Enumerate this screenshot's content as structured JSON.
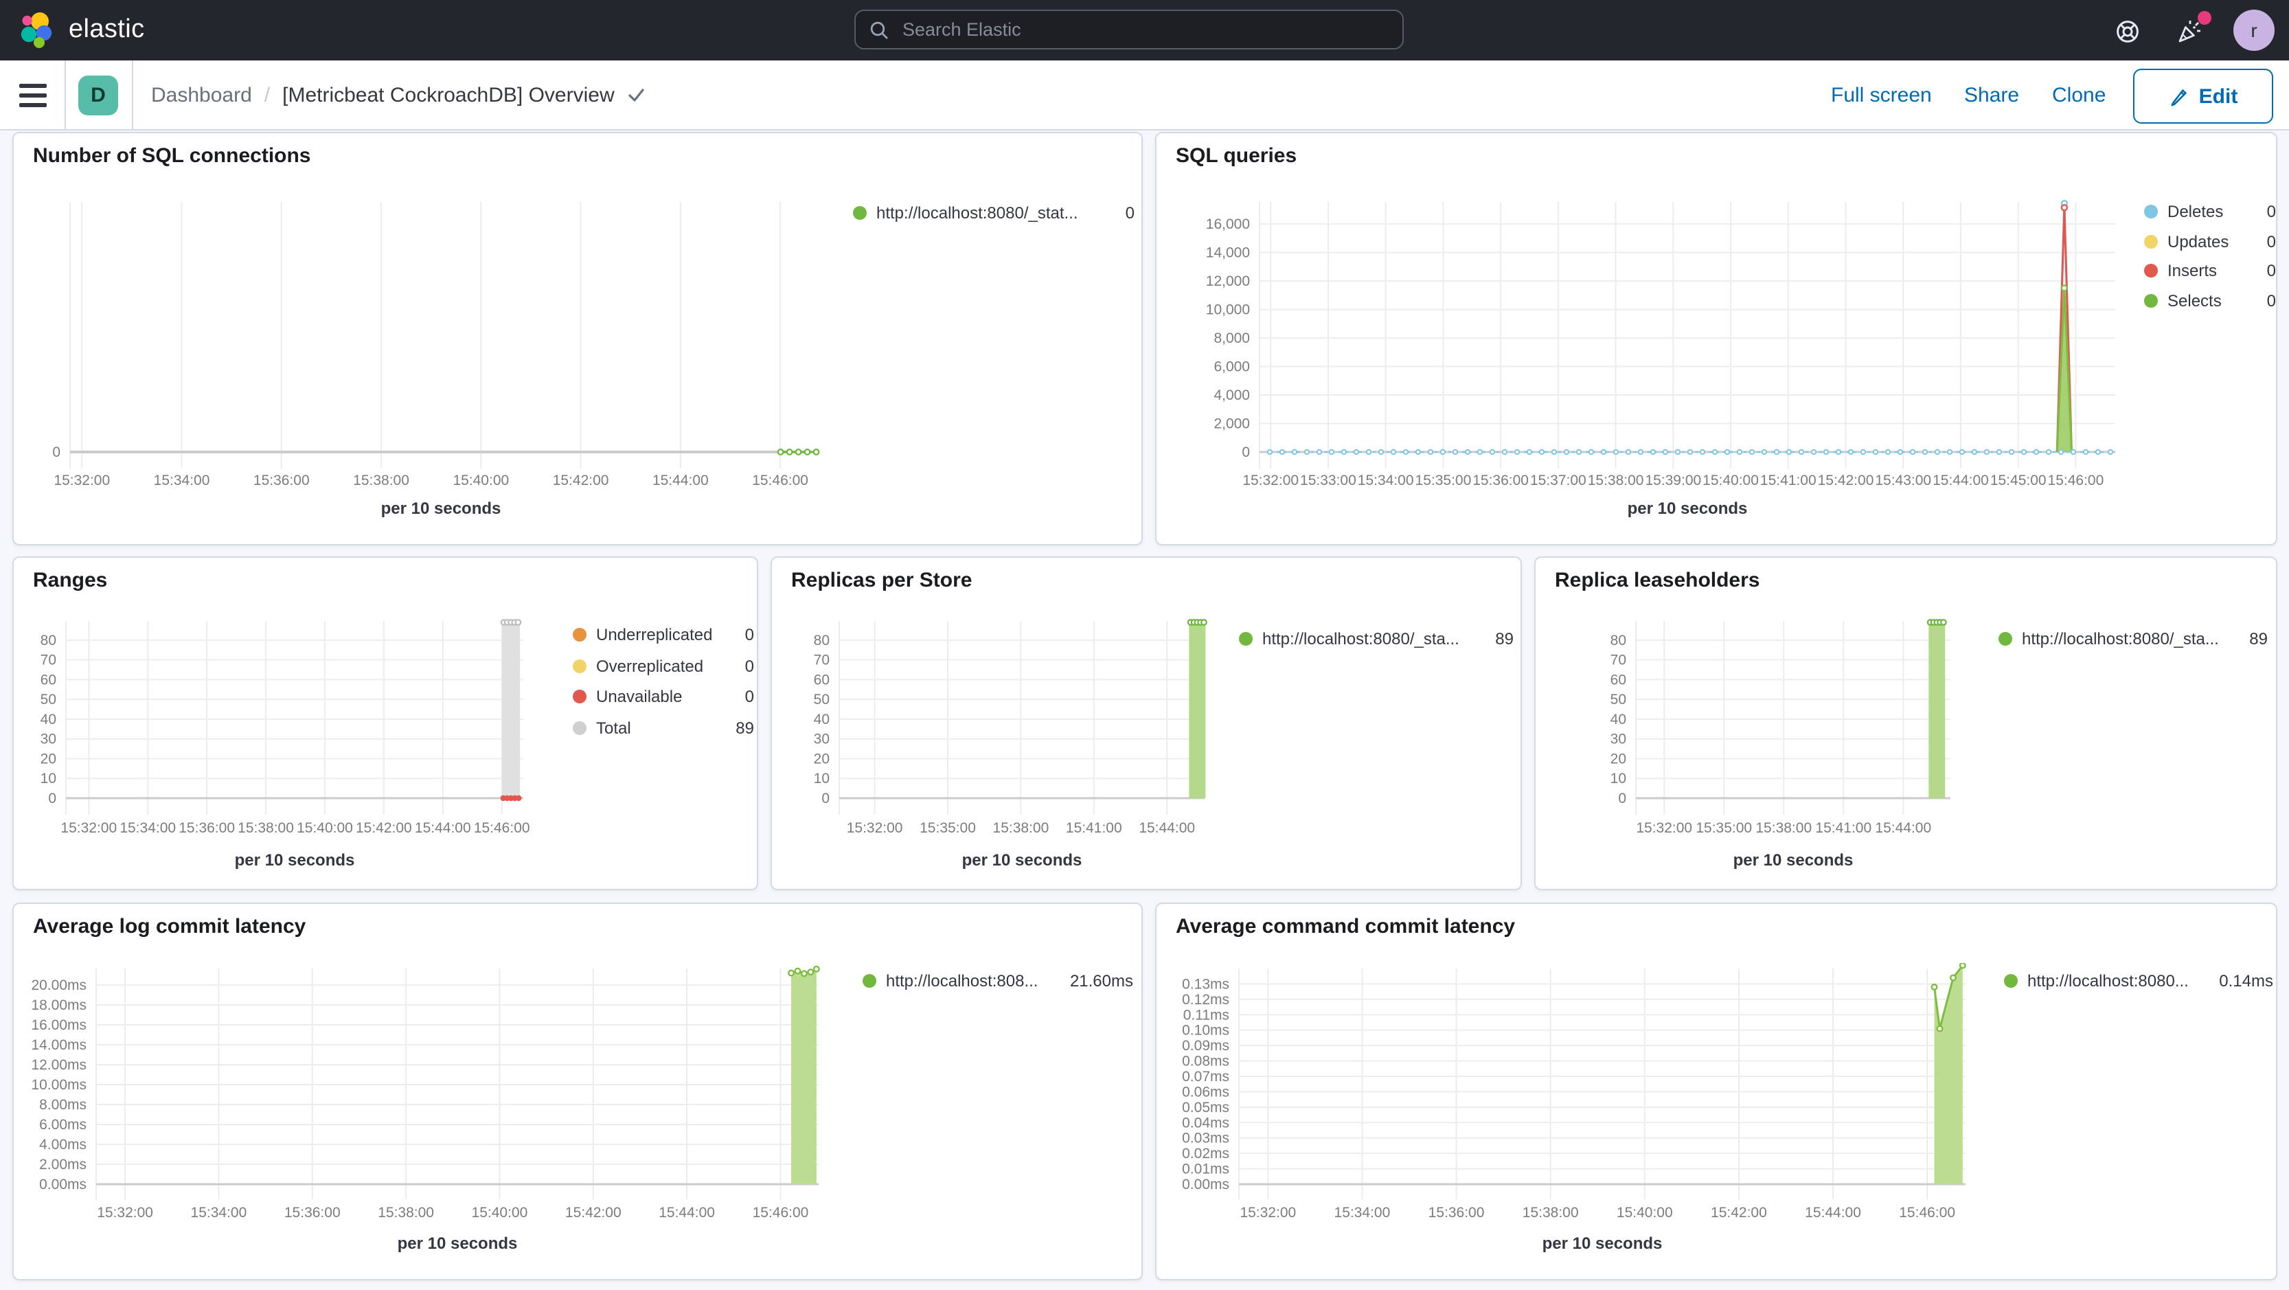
{
  "topbar": {
    "brand": "elastic",
    "search_placeholder": "Search Elastic",
    "avatar_initial": "r"
  },
  "navbar": {
    "badge_letter": "D",
    "breadcrumb_root": "Dashboard",
    "separator": "/",
    "page_title": "[Metricbeat CockroachDB] Overview",
    "actions": {
      "full_screen": "Full screen",
      "share": "Share",
      "clone": "Clone",
      "edit": "Edit"
    }
  },
  "chart_data": [
    {
      "id": "c1",
      "title": "Number of SQL connections",
      "type": "line",
      "xlabel": "per 10 seconds",
      "x_ticks": [
        "15:32:00",
        "15:34:00",
        "15:36:00",
        "15:38:00",
        "15:40:00",
        "15:42:00",
        "15:44:00",
        "15:46:00"
      ],
      "x_frac_start": 0.016,
      "x_frac_step": 0.1345,
      "y_ticks": [
        {
          "v": 0,
          "label": "0"
        }
      ],
      "ylim": [
        0,
        1
      ],
      "grid": true,
      "legend_position": "right",
      "legend": [
        {
          "label": "http://localhost:8080/_stat...",
          "value": "0",
          "color": "#73B83E"
        }
      ],
      "series": [
        {
          "name": "http://localhost:8080/_stat...",
          "type": "line",
          "color": "#73B83E",
          "markers": true,
          "points": [
            [
              0.958,
              0
            ],
            [
              0.97,
              0
            ],
            [
              0.982,
              0
            ],
            [
              0.994,
              0
            ],
            [
              1.006,
              0
            ]
          ]
        }
      ]
    },
    {
      "id": "c2",
      "title": "SQL queries",
      "type": "area",
      "xlabel": "per 10 seconds",
      "x_ticks": [
        "15:32:00",
        "15:33:00",
        "15:34:00",
        "15:35:00",
        "15:36:00",
        "15:37:00",
        "15:38:00",
        "15:39:00",
        "15:40:00",
        "15:41:00",
        "15:42:00",
        "15:43:00",
        "15:44:00",
        "15:45:00",
        "15:46:00"
      ],
      "x_frac_start": 0.013,
      "x_frac_step": 0.0672,
      "y_ticks": [
        {
          "v": 0,
          "label": "0"
        },
        {
          "v": 2000,
          "label": "2,000"
        },
        {
          "v": 4000,
          "label": "4,000"
        },
        {
          "v": 6000,
          "label": "6,000"
        },
        {
          "v": 8000,
          "label": "8,000"
        },
        {
          "v": 10000,
          "label": "10,000"
        },
        {
          "v": 12000,
          "label": "12,000"
        },
        {
          "v": 14000,
          "label": "14,000"
        },
        {
          "v": 16000,
          "label": "16,000"
        }
      ],
      "ylim": [
        0,
        17550
      ],
      "grid": true,
      "legend_position": "right",
      "legend": [
        {
          "label": "Deletes",
          "value": "0",
          "color": "#7EC6E3"
        },
        {
          "label": "Updates",
          "value": "0",
          "color": "#F2D368"
        },
        {
          "label": "Inserts",
          "value": "0",
          "color": "#E2574E"
        },
        {
          "label": "Selects",
          "value": "0",
          "color": "#73B83E"
        }
      ],
      "series": [
        {
          "name": "Deletes peak",
          "type": "line",
          "color": "#7EC6E3",
          "points": [
            [
              0.932,
              0
            ],
            [
              0.9405,
              17450
            ],
            [
              0.949,
              0
            ]
          ],
          "markers": [
            1
          ]
        },
        {
          "name": "Inserts peak",
          "type": "line",
          "color": "#E2574E",
          "points": [
            [
              0.932,
              0
            ],
            [
              0.9405,
              17150
            ],
            [
              0.949,
              0
            ]
          ],
          "markers": [
            1
          ]
        },
        {
          "name": "Selects peak",
          "type": "area",
          "color": "#7DBD3F",
          "fill": "rgba(159,204,102,0.9)",
          "points": [
            [
              0.932,
              0
            ],
            [
              0.9405,
              11500
            ],
            [
              0.949,
              0
            ]
          ],
          "markers": [
            1
          ]
        },
        {
          "name": "Deletes baseline",
          "type": "baseline",
          "color": "#7EC6E3",
          "v": 0,
          "f0": 0.012,
          "f1": 1.0,
          "marker_step": 9
        }
      ]
    },
    {
      "id": "c3",
      "title": "Ranges",
      "type": "bar",
      "xlabel": "per 10 seconds",
      "x_ticks": [
        "15:32:00",
        "15:34:00",
        "15:36:00",
        "15:38:00",
        "15:40:00",
        "15:42:00",
        "15:44:00",
        "15:46:00"
      ],
      "x_frac_start": 0.05,
      "x_frac_step": 0.129,
      "y_ticks": [
        {
          "v": 0,
          "label": "0"
        },
        {
          "v": 10,
          "label": "10"
        },
        {
          "v": 20,
          "label": "20"
        },
        {
          "v": 30,
          "label": "30"
        },
        {
          "v": 40,
          "label": "40"
        },
        {
          "v": 50,
          "label": "50"
        },
        {
          "v": 60,
          "label": "60"
        },
        {
          "v": 70,
          "label": "70"
        },
        {
          "v": 80,
          "label": "80"
        }
      ],
      "ylim": [
        0,
        89.7
      ],
      "grid": true,
      "legend_position": "right",
      "legend": [
        {
          "label": "Underreplicated",
          "value": "0",
          "color": "#E8923F"
        },
        {
          "label": "Overreplicated",
          "value": "0",
          "color": "#F2D368"
        },
        {
          "label": "Unavailable",
          "value": "0",
          "color": "#E2574E"
        },
        {
          "label": "Total",
          "value": "89",
          "color": "#CFCFCF"
        }
      ],
      "series": [
        {
          "name": "Total",
          "type": "bar",
          "color": "#E0E0E0",
          "f": 0.973,
          "w": 13,
          "v": 89,
          "topMarkers": {
            "n": 5,
            "color": "#BDBDBD"
          }
        },
        {
          "name": "Unavailable",
          "type": "dots",
          "color": "#E2574E",
          "f": 0.973,
          "w": 14,
          "v": 0,
          "n": 5
        }
      ]
    },
    {
      "id": "c4",
      "title": "Replicas per Store",
      "type": "bar",
      "xlabel": "per 10 seconds",
      "x_ticks": [
        "15:32:00",
        "15:35:00",
        "15:38:00",
        "15:41:00",
        "15:44:00"
      ],
      "x_frac_start": 0.097,
      "x_frac_step": 0.2,
      "y_ticks": [
        {
          "v": 0,
          "label": "0"
        },
        {
          "v": 10,
          "label": "10"
        },
        {
          "v": 20,
          "label": "20"
        },
        {
          "v": 30,
          "label": "30"
        },
        {
          "v": 40,
          "label": "40"
        },
        {
          "v": 50,
          "label": "50"
        },
        {
          "v": 60,
          "label": "60"
        },
        {
          "v": 70,
          "label": "70"
        },
        {
          "v": 80,
          "label": "80"
        }
      ],
      "ylim": [
        0,
        89.7
      ],
      "grid": true,
      "legend_position": "right",
      "legend": [
        {
          "label": "http://localhost:8080/_sta...",
          "value": "89",
          "color": "#73B83E"
        }
      ],
      "series": [
        {
          "name": "replicas",
          "type": "bar",
          "color": "#B5D98A",
          "f": 0.98,
          "w": 12,
          "v": 89,
          "topMarkers": {
            "n": 5,
            "color": "#6FB33E"
          }
        }
      ]
    },
    {
      "id": "c5",
      "title": "Replica leaseholders",
      "type": "bar",
      "xlabel": "per 10 seconds",
      "x_ticks": [
        "15:32:00",
        "15:35:00",
        "15:38:00",
        "15:41:00",
        "15:44:00"
      ],
      "x_frac_start": 0.09,
      "x_frac_step": 0.19,
      "y_ticks": [
        {
          "v": 0,
          "label": "0"
        },
        {
          "v": 10,
          "label": "10"
        },
        {
          "v": 20,
          "label": "20"
        },
        {
          "v": 30,
          "label": "30"
        },
        {
          "v": 40,
          "label": "40"
        },
        {
          "v": 50,
          "label": "50"
        },
        {
          "v": 60,
          "label": "60"
        },
        {
          "v": 70,
          "label": "70"
        },
        {
          "v": 80,
          "label": "80"
        }
      ],
      "ylim": [
        0,
        89.7
      ],
      "grid": true,
      "legend_position": "right",
      "legend": [
        {
          "label": "http://localhost:8080/_sta...",
          "value": "89",
          "color": "#73B83E"
        }
      ],
      "series": [
        {
          "name": "leaseholders",
          "type": "bar",
          "color": "#B5D98A",
          "f": 0.957,
          "w": 12,
          "v": 89,
          "topMarkers": {
            "n": 5,
            "color": "#6FB33E"
          }
        }
      ]
    },
    {
      "id": "c6",
      "title": "Average log commit latency",
      "type": "area",
      "xlabel": "per 10 seconds",
      "x_ticks": [
        "15:32:00",
        "15:34:00",
        "15:36:00",
        "15:38:00",
        "15:40:00",
        "15:42:00",
        "15:44:00",
        "15:46:00"
      ],
      "x_frac_start": 0.04,
      "x_frac_step": 0.1296,
      "y_ticks": [
        {
          "v": 0,
          "label": "0.00ms"
        },
        {
          "v": 2,
          "label": "2.00ms"
        },
        {
          "v": 4,
          "label": "4.00ms"
        },
        {
          "v": 6,
          "label": "6.00ms"
        },
        {
          "v": 8,
          "label": "8.00ms"
        },
        {
          "v": 10,
          "label": "10.00ms"
        },
        {
          "v": 12,
          "label": "12.00ms"
        },
        {
          "v": 14,
          "label": "14.00ms"
        },
        {
          "v": 16,
          "label": "16.00ms"
        },
        {
          "v": 18,
          "label": "18.00ms"
        },
        {
          "v": 20,
          "label": "20.00ms"
        }
      ],
      "ylim": [
        0,
        21.65
      ],
      "grid": true,
      "legend_position": "right",
      "legend": [
        {
          "label": "http://localhost:808...",
          "value": "21.60ms",
          "color": "#73B83E"
        }
      ],
      "series": [
        {
          "name": "latency",
          "type": "area",
          "color": "#7DBD3F",
          "fill": "#BCDC8F",
          "markers": true,
          "points": [
            [
              0.962,
              21.2
            ],
            [
              0.971,
              21.4
            ],
            [
              0.98,
              21.15
            ],
            [
              0.989,
              21.3
            ],
            [
              0.997,
              21.6
            ]
          ]
        }
      ]
    },
    {
      "id": "c7",
      "title": "Average command commit latency",
      "type": "area",
      "xlabel": "per 10 seconds",
      "x_ticks": [
        "15:32:00",
        "15:34:00",
        "15:36:00",
        "15:38:00",
        "15:40:00",
        "15:42:00",
        "15:44:00",
        "15:46:00"
      ],
      "x_frac_start": 0.04,
      "x_frac_step": 0.1296,
      "y_ticks": [
        {
          "v": 0,
          "label": "0.00ms"
        },
        {
          "v": 0.01,
          "label": "0.01ms"
        },
        {
          "v": 0.02,
          "label": "0.02ms"
        },
        {
          "v": 0.03,
          "label": "0.03ms"
        },
        {
          "v": 0.04,
          "label": "0.04ms"
        },
        {
          "v": 0.05,
          "label": "0.05ms"
        },
        {
          "v": 0.06,
          "label": "0.06ms"
        },
        {
          "v": 0.07,
          "label": "0.07ms"
        },
        {
          "v": 0.08,
          "label": "0.08ms"
        },
        {
          "v": 0.09,
          "label": "0.09ms"
        },
        {
          "v": 0.1,
          "label": "0.10ms"
        },
        {
          "v": 0.11,
          "label": "0.11ms"
        },
        {
          "v": 0.12,
          "label": "0.12ms"
        },
        {
          "v": 0.13,
          "label": "0.13ms"
        }
      ],
      "ylim": [
        0,
        0.14
      ],
      "grid": true,
      "legend_position": "right",
      "legend": [
        {
          "label": "http://localhost:8080...",
          "value": "0.14ms",
          "color": "#73B83E"
        }
      ],
      "series": [
        {
          "name": "latency",
          "type": "area",
          "color": "#7DBD3F",
          "fill": "#BCDC8F",
          "markers": true,
          "points": [
            [
              0.957,
              0.128
            ],
            [
              0.9645,
              0.101
            ],
            [
              0.983,
              0.134
            ],
            [
              0.996,
              0.142
            ]
          ]
        }
      ]
    }
  ]
}
